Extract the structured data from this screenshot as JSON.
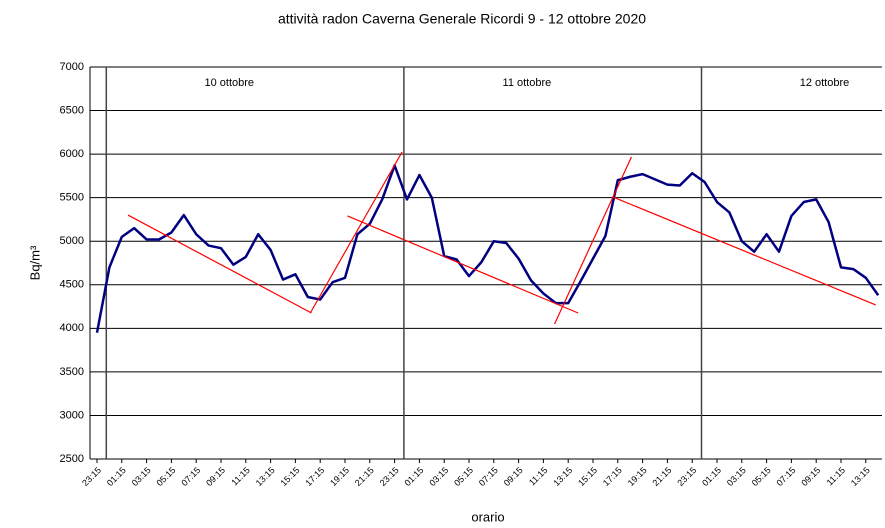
{
  "chart_data": {
    "type": "line",
    "title": "attività radon Caverna Generale Ricordi 9 - 12 ottobre 2020",
    "xlabel": "orario",
    "ylabel": "Bq/m³",
    "categories": [
      "23:15",
      null,
      "01:15",
      null,
      "03:15",
      null,
      "05:15",
      null,
      "07:15",
      null,
      "09:15",
      null,
      "11:15",
      null,
      "13:15",
      null,
      "15:15",
      null,
      "17:15",
      null,
      "19:15",
      null,
      "21:15",
      null,
      "23:15",
      null,
      "01:15",
      null,
      "03:15",
      null,
      "05:15",
      null,
      "07:15",
      null,
      "09:15",
      null,
      "11:15",
      null,
      "13:15",
      null,
      "15:15",
      null,
      "17:15",
      null,
      "19:15",
      null,
      "21:15",
      null,
      "23:15",
      null,
      "01:15",
      null,
      "03:15",
      null,
      "05:15",
      null,
      "07:15",
      null,
      "09:15",
      null,
      "11:15",
      null,
      "13:15",
      null
    ],
    "series": [
      {
        "name": "radon",
        "color": "#000080",
        "values": [
          3950,
          4700,
          5050,
          5150,
          5020,
          5020,
          5100,
          5300,
          5080,
          4950,
          4920,
          4730,
          4820,
          5080,
          4900,
          4560,
          4620,
          4360,
          4330,
          4530,
          4580,
          5080,
          5200,
          5480,
          5870,
          5480,
          5760,
          5500,
          4830,
          4790,
          4600,
          4760,
          5000,
          4980,
          4800,
          4550,
          4400,
          4290,
          4290,
          4540,
          4800,
          5060,
          5700,
          5740,
          5770,
          5710,
          5650,
          5640,
          5780,
          5680,
          5450,
          5330,
          5000,
          4880,
          5080,
          4880,
          5290,
          5450,
          5480,
          5220,
          4700,
          4680,
          4580,
          4380
        ]
      }
    ],
    "ylim": [
      2500,
      7000
    ],
    "yticks": [
      2500,
      3000,
      3500,
      4000,
      4500,
      5000,
      5500,
      6000,
      6500,
      7000
    ],
    "grid": true,
    "day_markers": [
      {
        "x": 0.75,
        "label": "10 ottobre"
      },
      {
        "x": 24.75,
        "label": "11 ottobre"
      },
      {
        "x": 48.75,
        "label": "12 ottobre"
      }
    ],
    "trend_color": "#ff0000",
    "trend_lines": [
      {
        "x": [
          2.5,
          17.3
        ],
        "y": [
          5300,
          4176
        ]
      },
      {
        "x": [
          17.2,
          24.6
        ],
        "y": [
          4176,
          6024
        ]
      },
      {
        "x": [
          20.2,
          38.8
        ],
        "y": [
          5290,
          4176
        ]
      },
      {
        "x": [
          36.9,
          43.1
        ],
        "y": [
          4050,
          5967
        ]
      },
      {
        "x": [
          41.6,
          62.8
        ],
        "y": [
          5508,
          4268
        ]
      }
    ]
  }
}
